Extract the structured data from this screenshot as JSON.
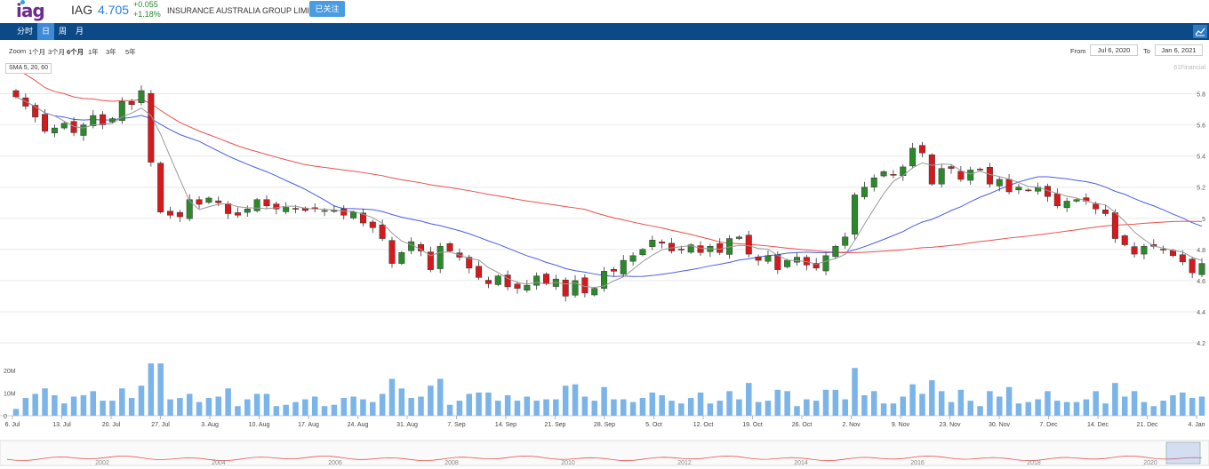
{
  "header": {
    "logo": "iag",
    "ticker": "IAG",
    "price": "4.705",
    "change_abs": "+0.055",
    "change_pct": "+1.18%",
    "company": "INSURANCE AUSTRALIA GROUP LIMITED",
    "follow_label": "已关注"
  },
  "nav": {
    "tabs": [
      {
        "label": "分时",
        "active": false
      },
      {
        "label": "日",
        "active": true
      },
      {
        "label": "周",
        "active": false
      },
      {
        "label": "月",
        "active": false
      }
    ],
    "chart_icon": "chart-line-icon"
  },
  "zoom": {
    "label": "Zoom",
    "options": [
      {
        "label": "1个月",
        "selected": false
      },
      {
        "label": "3个月",
        "selected": false
      },
      {
        "label": "6个月",
        "selected": true
      },
      {
        "label": "1年",
        "selected": false
      },
      {
        "label": "3年",
        "selected": false
      },
      {
        "label": "5年",
        "selected": false
      }
    ],
    "from_label": "From",
    "from_value": "Jul 6, 2020",
    "to_label": "To",
    "to_value": "Jan 6, 2021"
  },
  "indicator_label": "SMA 5, 20, 60",
  "credit": "61Financial",
  "colors": {
    "up": "#2a8a2a",
    "down": "#d7191c",
    "sma5": "#999999",
    "sma20": "#4b5ce8",
    "sma60": "#e8504b",
    "volume": "#7ab4e8",
    "nav_bg": "#0b4a86",
    "nav_active": "#3d8ad8"
  },
  "chart_data": {
    "type": "candlestick",
    "yticks": [
      "5.8",
      "5.6",
      "5.4",
      "5.2",
      "5",
      "4.8",
      "4.6",
      "4.4",
      "4.2"
    ],
    "ylim": [
      4.2,
      5.9
    ],
    "xticks": [
      "6. Jul",
      "13. Jul",
      "20. Jul",
      "27. Jul",
      "3. Aug",
      "10. Aug",
      "17. Aug",
      "24. Aug",
      "31. Aug",
      "7. Sep",
      "14. Sep",
      "21. Sep",
      "28. Sep",
      "5. Oct",
      "12. Oct",
      "19. Oct",
      "26. Oct",
      "2. Nov",
      "9. Nov",
      "23. Nov",
      "30. Nov",
      "7. Dec",
      "14. Dec",
      "21. Dec",
      "4. Jan"
    ],
    "close": [
      5.78,
      5.72,
      5.65,
      5.56,
      5.58,
      5.61,
      5.55,
      5.6,
      5.66,
      5.6,
      5.64,
      5.75,
      5.73,
      5.82,
      5.36,
      5.04,
      5.02,
      5.01,
      5.12,
      5.09,
      5.13,
      5.1,
      5.03,
      5.02,
      5.06,
      5.12,
      5.08,
      5.06,
      5.07,
      5.06,
      5.05,
      5.06,
      5.05,
      5.05,
      5.02,
      5.04,
      4.97,
      4.94,
      4.87,
      4.71,
      4.78,
      4.85,
      4.79,
      4.67,
      4.82,
      4.79,
      4.75,
      4.68,
      4.62,
      4.58,
      4.63,
      4.56,
      4.55,
      4.57,
      4.63,
      4.58,
      4.61,
      4.5,
      4.6,
      4.52,
      4.55,
      4.66,
      4.66,
      4.73,
      4.76,
      4.8,
      4.86,
      4.84,
      4.79,
      4.8,
      4.83,
      4.78,
      4.82,
      4.78,
      4.87,
      4.88,
      4.77,
      4.73,
      4.76,
      4.67,
      4.73,
      4.75,
      4.7,
      4.68,
      4.76,
      4.82,
      4.88,
      5.15,
      5.2,
      5.26,
      5.3,
      5.28,
      5.33,
      5.45,
      5.42,
      5.22,
      5.32,
      5.32,
      5.25,
      5.31,
      5.31,
      5.22,
      5.25,
      5.17,
      5.2,
      5.18,
      5.2,
      5.14,
      5.08,
      5.11,
      5.12,
      5.11,
      5.06,
      5.03,
      4.87,
      4.83,
      4.77,
      4.82,
      4.82,
      4.8,
      4.76,
      4.72,
      4.65,
      4.71
    ],
    "volume_ticks": [
      "20M",
      "10M",
      "0"
    ],
    "navigator_years": [
      "2002",
      "2004",
      "2006",
      "2008",
      "2010",
      "2012",
      "2014",
      "2016",
      "2018",
      "2020"
    ]
  }
}
